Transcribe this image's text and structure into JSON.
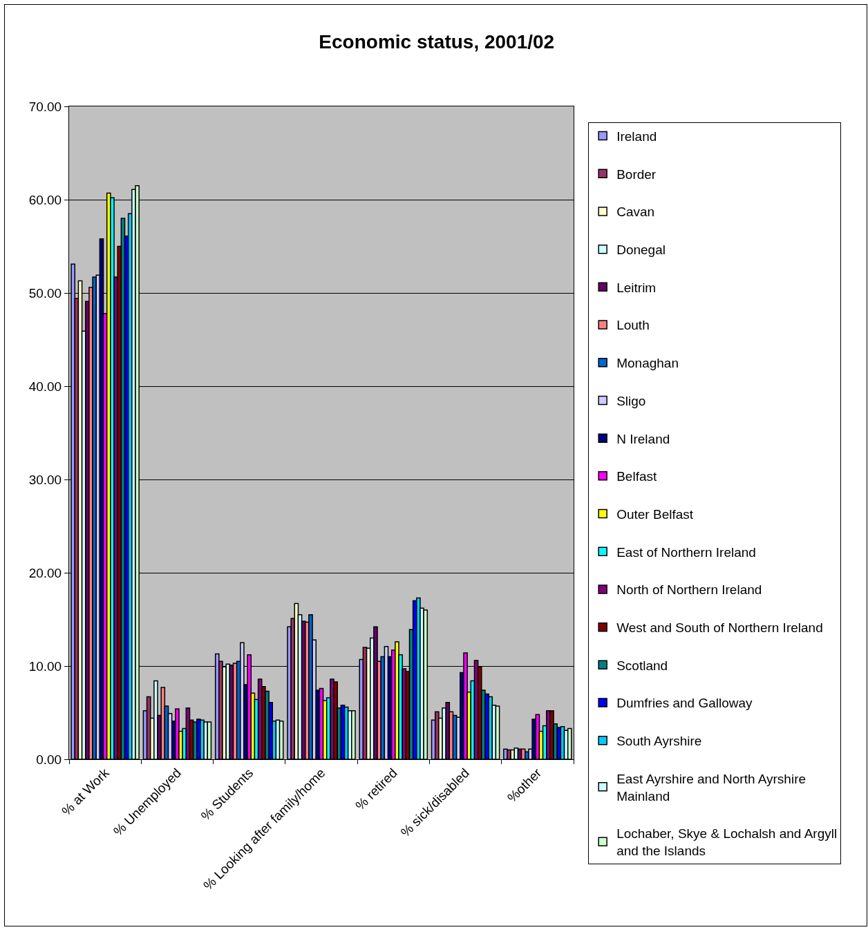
{
  "chart_data": {
    "type": "bar",
    "title": "Economic status, 2001/02",
    "categories": [
      "% at Work",
      "% Unemployed",
      "% Students",
      "% Looking after family/home",
      "% retired",
      "% sick/disabled",
      "%other"
    ],
    "ylim": [
      0,
      70
    ],
    "yticks": [
      {
        "value": 0,
        "label": "0.00"
      },
      {
        "value": 10,
        "label": "10.00"
      },
      {
        "value": 20,
        "label": "20.00"
      },
      {
        "value": 30,
        "label": "30.00"
      },
      {
        "value": 40,
        "label": "40.00"
      },
      {
        "value": 50,
        "label": "50.00"
      },
      {
        "value": 60,
        "label": "60.00"
      },
      {
        "value": 70,
        "label": "70.00"
      }
    ],
    "grid": "y",
    "legend": "right",
    "series": [
      {
        "name": "Ireland",
        "color": "#9999ff",
        "values": [
          53.1,
          5.2,
          11.3,
          14.2,
          10.7,
          4.2,
          1.1
        ]
      },
      {
        "name": "Border",
        "color": "#993366",
        "values": [
          49.4,
          6.7,
          10.5,
          15.1,
          12.0,
          5.1,
          1.0
        ]
      },
      {
        "name": "Cavan",
        "color": "#ffffcc",
        "values": [
          51.3,
          4.4,
          9.9,
          16.7,
          11.9,
          4.4,
          1.0
        ]
      },
      {
        "name": "Donegal",
        "color": "#ccffff",
        "values": [
          45.9,
          8.4,
          10.2,
          15.5,
          13.0,
          5.5,
          1.2
        ]
      },
      {
        "name": "Leitrim",
        "color": "#660066",
        "values": [
          49.1,
          4.7,
          10.1,
          14.8,
          14.2,
          6.1,
          1.1
        ]
      },
      {
        "name": "Louth",
        "color": "#ff8080",
        "values": [
          50.6,
          7.7,
          10.3,
          14.7,
          10.5,
          5.1,
          1.1
        ]
      },
      {
        "name": "Monaghan",
        "color": "#0066cc",
        "values": [
          51.7,
          5.7,
          10.5,
          15.5,
          11.0,
          4.7,
          0.8
        ]
      },
      {
        "name": "Sligo",
        "color": "#ccccff",
        "values": [
          51.9,
          4.9,
          12.5,
          12.8,
          12.1,
          4.5,
          1.1
        ]
      },
      {
        "name": "N Ireland",
        "color": "#000080",
        "values": [
          55.8,
          4.1,
          8.0,
          7.4,
          11.0,
          9.3,
          4.3
        ]
      },
      {
        "name": "Belfast",
        "color": "#ff00ff",
        "values": [
          47.8,
          5.4,
          11.2,
          7.6,
          11.7,
          11.4,
          4.8
        ]
      },
      {
        "name": "Outer Belfast",
        "color": "#ffff00",
        "values": [
          60.7,
          3.0,
          7.1,
          6.3,
          12.6,
          7.2,
          3.0
        ]
      },
      {
        "name": "East of Northern Ireland",
        "color": "#00ffff",
        "values": [
          60.2,
          3.3,
          6.4,
          6.6,
          11.2,
          8.4,
          3.6
        ]
      },
      {
        "name": "North of Northern Ireland",
        "color": "#800080",
        "values": [
          51.7,
          5.5,
          8.6,
          8.6,
          9.7,
          10.6,
          5.2
        ]
      },
      {
        "name": "West and South of Northern Ireland",
        "color": "#800000",
        "values": [
          55.0,
          4.2,
          7.8,
          8.3,
          9.4,
          9.9,
          5.2
        ]
      },
      {
        "name": "Scotland",
        "color": "#008080",
        "values": [
          58.0,
          4.0,
          7.3,
          5.5,
          13.9,
          7.4,
          3.8
        ]
      },
      {
        "name": "Dumfries and Galloway",
        "color": "#0000ff",
        "values": [
          56.1,
          4.3,
          6.1,
          5.8,
          17.0,
          7.0,
          3.4
        ]
      },
      {
        "name": "South Ayrshire",
        "color": "#00ccff",
        "values": [
          58.5,
          4.2,
          4.1,
          5.6,
          17.3,
          6.7,
          3.5
        ]
      },
      {
        "name": "East Ayrshire and North Ayrshire Mainland",
        "color": "#ccffff",
        "values": [
          61.1,
          4.0,
          4.2,
          5.2,
          16.2,
          5.8,
          3.1
        ]
      },
      {
        "name": "Lochaber, Skye & Lochalsh and Argyll and the Islands",
        "color": "#ccffcc",
        "values": [
          61.5,
          4.0,
          4.1,
          5.2,
          16.0,
          5.7,
          3.3
        ]
      }
    ]
  }
}
